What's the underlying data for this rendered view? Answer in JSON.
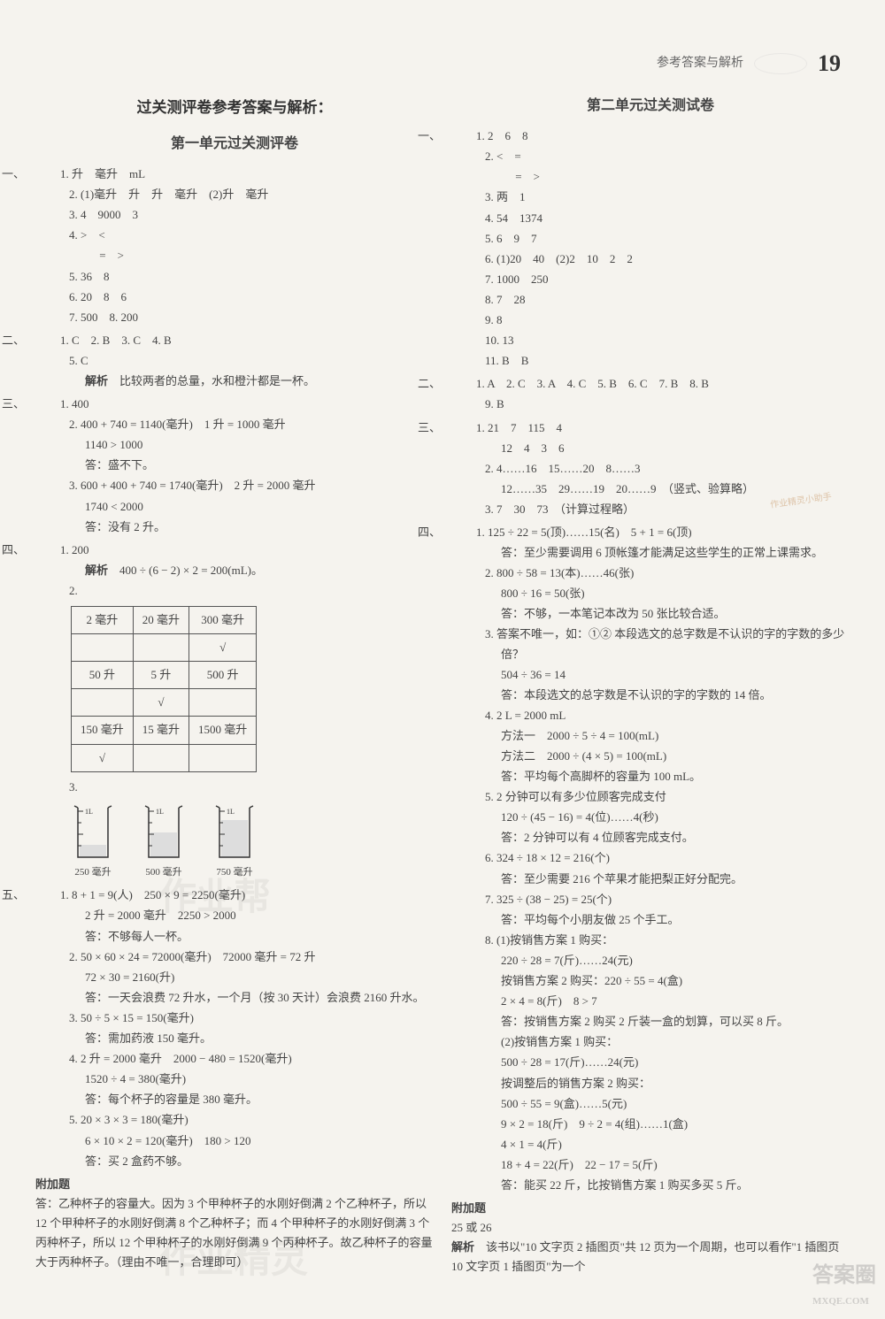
{
  "header": {
    "label": "参考答案与解析",
    "page": "19"
  },
  "left": {
    "main_title": "过关测评卷参考答案与解析：",
    "title": "第一单元过关测评卷",
    "s1": {
      "num": "一、",
      "l1": "1. 升　毫升　mL",
      "l2": "2. (1)毫升　升　升　毫升　(2)升　毫升",
      "l3": "3. 4　9000　3",
      "l4": "4. >　<",
      "l4b": "　 =　>",
      "l5": "5. 36　8",
      "l6": "6. 20　8　6",
      "l7": "7. 500　8. 200"
    },
    "s2": {
      "num": "二、",
      "l1": "1. C　2. B　3. C　4. B",
      "l2": "5. C",
      "l3_label": "解析",
      "l3": "　比较两者的总量，水和橙汁都是一杯。"
    },
    "s3": {
      "num": "三、",
      "l1": "1. 400",
      "l2": "2. 400 + 740 = 1140(毫升)　1 升 = 1000 毫升",
      "l2b": "1140 > 1000",
      "l2c": "答：盛不下。",
      "l3": "3. 600 + 400 + 740 = 1740(毫升)　2 升 = 2000 毫升",
      "l3b": "1740 < 2000",
      "l3c": "答：没有 2 升。"
    },
    "s4": {
      "num": "四、",
      "l1": "1. 200",
      "l1b_label": "解析",
      "l1b": "　400 ÷ (6 − 2) × 2 = 200(mL)。",
      "l2": "2.",
      "table": {
        "rows": [
          [
            "2 毫升",
            "20 毫升",
            "300 毫升"
          ],
          [
            "",
            "",
            "√"
          ],
          [
            "50 升",
            "5 升",
            "500 升"
          ],
          [
            "",
            "√",
            ""
          ],
          [
            "150 毫升",
            "15 毫升",
            "1500 毫升"
          ],
          [
            "√",
            "",
            ""
          ]
        ]
      },
      "l3": "3.",
      "beakers": [
        {
          "top": "1L",
          "fill": "250 毫升",
          "fill_ratio": 0.25
        },
        {
          "top": "1L",
          "fill": "500 毫升",
          "fill_ratio": 0.5
        },
        {
          "top": "1L",
          "fill": "750 毫升",
          "fill_ratio": 0.75
        }
      ]
    },
    "s5": {
      "num": "五、",
      "l1": "1. 8 + 1 = 9(人)　250 × 9 = 2250(毫升)",
      "l1b": "2 升 = 2000 毫升　2250 > 2000",
      "l1c": "答：不够每人一杯。",
      "l2": "2. 50 × 60 × 24 = 72000(毫升)　72000 毫升 = 72 升",
      "l2b": "72 × 30 = 2160(升)",
      "l2c": "答：一天会浪费 72 升水，一个月（按 30 天计）会浪费 2160 升水。",
      "l3": "3. 50 ÷ 5 × 15 = 150(毫升)",
      "l3b": "答：需加药液 150 毫升。",
      "l4": "4. 2 升 = 2000 毫升　2000 − 480 = 1520(毫升)",
      "l4b": "1520 ÷ 4 = 380(毫升)",
      "l4c": "答：每个杯子的容量是 380 毫升。",
      "l5": "5. 20 × 3 × 3 = 180(毫升)",
      "l5b": "6 × 10 × 2 = 120(毫升)　180 > 120",
      "l5c": "答：买 2 盒药不够。"
    },
    "extra": {
      "title": "附加题",
      "body": "答：乙种杯子的容量大。因为 3 个甲种杯子的水刚好倒满 2 个乙种杯子，所以 12 个甲种杯子的水刚好倒满 8 个乙种杯子；而 4 个甲种杯子的水刚好倒满 3 个丙种杯子，所以 12 个甲种杯子的水刚好倒满 9 个丙种杯子。故乙种杯子的容量大于丙种杯子。（理由不唯一，合理即可）"
    }
  },
  "right": {
    "title": "第二单元过关测试卷",
    "s1": {
      "num": "一、",
      "l1": "1. 2　6　8",
      "l2": "2. <　=",
      "l2b": "　 =　>",
      "l3": "3. 两　1",
      "l4": "4. 54　1374",
      "l5": "5. 6　9　7",
      "l6": "6. (1)20　40　(2)2　10　2　2",
      "l7": "7. 1000　250",
      "l8": "8. 7　28",
      "l9": "9. 8",
      "l10": "10. 13",
      "l11": "11. B　B"
    },
    "s2": {
      "num": "二、",
      "l1": "1. A　2. C　3. A　4. C　5. B　6. C　7. B　8. B",
      "l2": "9. B"
    },
    "s3": {
      "num": "三、",
      "l1": "1. 21　7　115　4",
      "l1b": "12　4　3　6",
      "l2": "2. 4……16　15……20　8……3",
      "l2b": "12……35　29……19　20……9　（竖式、验算略）",
      "l3": "3. 7　30　73　（计算过程略）"
    },
    "s4": {
      "num": "四、",
      "l1": "1. 125 ÷ 22 = 5(顶)……15(名)　5 + 1 = 6(顶)",
      "l1b": "答：至少需要调用 6 顶帐篷才能满足这些学生的正常上课需求。",
      "l2": "2. 800 ÷ 58 = 13(本)……46(张)",
      "l2b": "800 ÷ 16 = 50(张)",
      "l2c": "答：不够，一本笔记本改为 50 张比较合适。",
      "l3": "3. 答案不唯一，如：①② 本段选文的总字数是不认识的字的字数的多少倍？",
      "l3b": "504 ÷ 36 = 14",
      "l3c": "答：本段选文的总字数是不认识的字的字数的 14 倍。",
      "l4": "4. 2 L = 2000 mL",
      "l4b": "方法一　2000 ÷ 5 ÷ 4 = 100(mL)",
      "l4c": "方法二　2000 ÷ (4 × 5) = 100(mL)",
      "l4d": "答：平均每个高脚杯的容量为 100 mL。",
      "l5": "5. 2 分钟可以有多少位顾客完成支付",
      "l5b": "120 ÷ (45 − 16) = 4(位)……4(秒)",
      "l5c": "答：2 分钟可以有 4 位顾客完成支付。",
      "l6": "6. 324 ÷ 18 × 12 = 216(个)",
      "l6b": "答：至少需要 216 个苹果才能把梨正好分配完。",
      "l7": "7. 325 ÷ (38 − 25) = 25(个)",
      "l7b": "答：平均每个小朋友做 25 个手工。",
      "l8": "8. (1)按销售方案 1 购买：",
      "l8b": "220 ÷ 28 = 7(斤)……24(元)",
      "l8c": "按销售方案 2 购买：220 ÷ 55 = 4(盒)",
      "l8d": "2 × 4 = 8(斤)　8 > 7",
      "l8e": "答：按销售方案 2 购买 2 斤装一盒的划算，可以买 8 斤。",
      "l8f": "(2)按销售方案 1 购买：",
      "l8g": "500 ÷ 28 = 17(斤)……24(元)",
      "l8h": "按调整后的销售方案 2 购买：",
      "l8i": "500 ÷ 55 = 9(盒)……5(元)",
      "l8j": "9 × 2 = 18(斤)　9 ÷ 2 = 4(组)……1(盒)",
      "l8k": "4 × 1 = 4(斤)",
      "l8l": "18 + 4 = 22(斤)　22 − 17 = 5(斤)",
      "l8m": "答：能买 22 斤，比按销售方案 1 购买多买 5 斤。"
    },
    "extra": {
      "title": "附加题",
      "l1": "25 或 26",
      "l2_label": "解析",
      "l2": "　该书以\"10 文字页 2 插图页\"共 12 页为一个周期，也可以看作\"1 插图页 10 文字页 1 插图页\"为一个"
    }
  },
  "watermark1": "作业帮",
  "watermark2": "作业精灵",
  "corner": "答案圈",
  "corner2": "MXQE.COM",
  "seal": "作业精灵小助手"
}
